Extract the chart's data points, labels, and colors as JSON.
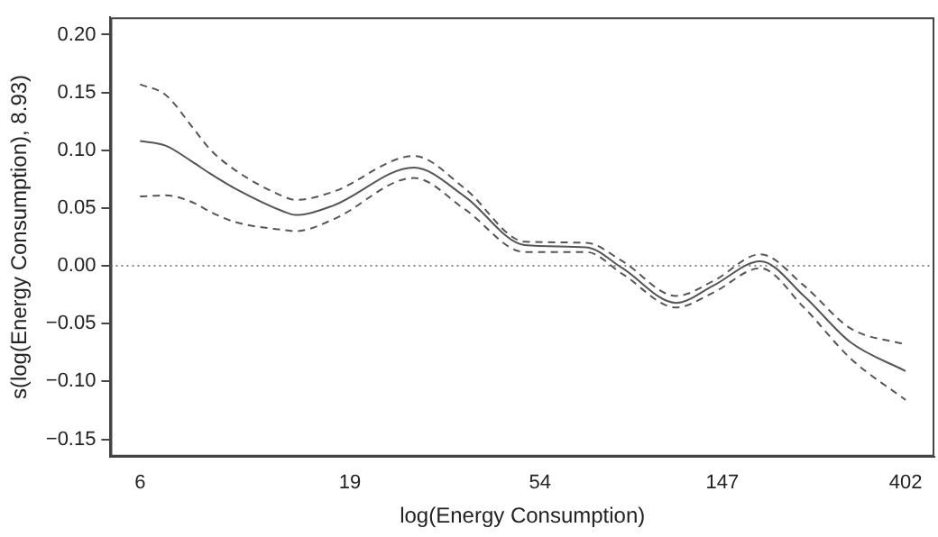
{
  "chart_data": {
    "type": "line",
    "xlabel": "log(Energy Consumption)",
    "ylabel": "s(log(Energy Consumption), 8.93)",
    "x": [
      6,
      6.9,
      8,
      8.8,
      10.1,
      13.2,
      14.1,
      17.3,
      27,
      35.7,
      49.6,
      69.6,
      84.9,
      114,
      140,
      181,
      230,
      297,
      402
    ],
    "series": [
      {
        "color": "#555555",
        "line_style": "solid",
        "values": [
          0.108,
          0.104,
          0.09,
          0.08,
          0.067,
          0.047,
          0.044,
          0.052,
          0.085,
          0.06,
          0.018,
          0.016,
          -0.002,
          -0.032,
          -0.017,
          0.004,
          -0.026,
          -0.066,
          -0.091
        ]
      },
      {
        "color": "#555555",
        "line_style": "dashed",
        "values": [
          0.157,
          0.148,
          0.12,
          0.101,
          0.083,
          0.06,
          0.057,
          0.064,
          0.095,
          0.067,
          0.021,
          0.02,
          0.004,
          -0.026,
          -0.013,
          0.01,
          -0.017,
          -0.054,
          -0.068
        ]
      },
      {
        "color": "#555555",
        "line_style": "dashed",
        "values": [
          0.06,
          0.061,
          0.055,
          0.047,
          0.038,
          0.031,
          0.03,
          0.04,
          0.076,
          0.049,
          0.012,
          0.012,
          -0.007,
          -0.036,
          -0.023,
          -0.002,
          -0.036,
          -0.08,
          -0.116
        ]
      }
    ],
    "log": "x",
    "xlim": [
      5.1,
      471
    ],
    "xticks": [
      6,
      19,
      54,
      147,
      402
    ],
    "ylim": [
      -0.165,
      0.215
    ],
    "yticks": [
      {
        "value": -0.15,
        "label": "−0.15"
      },
      {
        "value": -0.1,
        "label": "−0.10"
      },
      {
        "value": -0.05,
        "label": "−0.05"
      },
      {
        "value": 0,
        "label": "0.00"
      },
      {
        "value": 0.05,
        "label": "0.05"
      },
      {
        "value": 0.1,
        "label": "0.10"
      },
      {
        "value": 0.15,
        "label": "0.15"
      },
      {
        "value": 0.2,
        "label": "0.20"
      }
    ],
    "ref_lines": [
      {
        "axis": "y",
        "value": 0,
        "color": "#888888",
        "line_style": "dotted"
      }
    ],
    "grid": false,
    "legend": false
  }
}
